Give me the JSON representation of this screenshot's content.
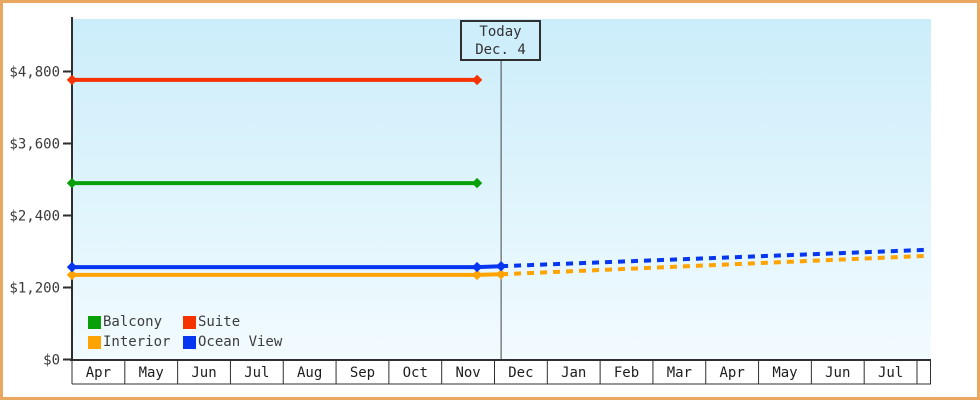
{
  "chart_data": {
    "type": "line",
    "title": "",
    "description": "Cruise cabin price history by category with projection after today",
    "y_axis": {
      "tick_labels": [
        "$0",
        "$1,200",
        "$2,400",
        "$3,600",
        "$4,800"
      ],
      "tick_values": [
        0,
        1200,
        2400,
        3600,
        4800
      ],
      "min": 0,
      "max_visible": 5675,
      "grid": false
    },
    "x_axis": {
      "month_labels": [
        "Apr",
        "May",
        "Jun",
        "Jul",
        "Aug",
        "Sep",
        "Oct",
        "Nov",
        "Dec",
        "Jan",
        "Feb",
        "Mar",
        "Apr",
        "May",
        "Jun",
        "Jul"
      ]
    },
    "today_annotation": {
      "line1": "Today",
      "line2": "Dec. 4",
      "month_position": 8.125
    },
    "series": [
      {
        "name": "Suite",
        "color": "#f53200",
        "solid": [
          [
            0,
            4660
          ],
          [
            7.67,
            4660
          ]
        ],
        "dashed": []
      },
      {
        "name": "Balcony",
        "color": "#08a008",
        "solid": [
          [
            0,
            2940
          ],
          [
            7.67,
            2940
          ]
        ],
        "dashed": []
      },
      {
        "name": "Interior",
        "color": "#ffa300",
        "solid": [
          [
            0,
            1410
          ],
          [
            7.67,
            1410
          ],
          [
            8.125,
            1420
          ]
        ],
        "dashed": [
          [
            8.125,
            1420
          ],
          [
            16.24,
            1730
          ]
        ]
      },
      {
        "name": "Ocean View",
        "color": "#0636f0",
        "solid": [
          [
            0,
            1540
          ],
          [
            7.67,
            1540
          ],
          [
            8.125,
            1555
          ]
        ],
        "dashed": [
          [
            8.125,
            1555
          ],
          [
            16.24,
            1830
          ]
        ]
      }
    ],
    "legend": [
      {
        "label": "Balcony",
        "color": "#08a008"
      },
      {
        "label": "Suite",
        "color": "#f53200"
      },
      {
        "label": "Interior",
        "color": "#ffa300"
      },
      {
        "label": "Ocean View",
        "color": "#0636f0"
      }
    ],
    "legend_position": "bottom-left-inside",
    "colors": {
      "frame_border": "#e9a75f",
      "plot_bg_top": "#cbedfa",
      "plot_bg_bottom": "#f2fbff",
      "axis": "#2f2f2f",
      "tick_text": "#3a3a3a",
      "month_text": "#1d1d1d",
      "today_box_fill": "#cfeefb"
    }
  }
}
